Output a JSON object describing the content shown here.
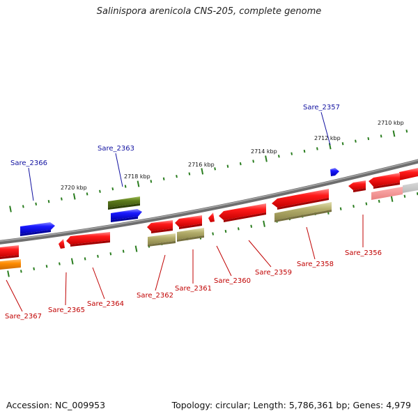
{
  "title": "Salinispora arenicola CNS-205, complete genome",
  "footer": {
    "accession_label": "Accession:",
    "accession": "NC_009953",
    "topology_label": "Topology:",
    "topology": "circular",
    "length_label": "Length:",
    "length": "5,786,361 bp",
    "genes_label": "Genes:",
    "genes": "4,979"
  },
  "colors": {
    "backbone": "#7a7a7a",
    "tick_mark": "#2a7d1f",
    "gene_red": "#ee1111",
    "gene_blue": "#1111ee",
    "gene_olive": "#5c7a1c",
    "gene_khaki": "#b3ad6b",
    "gene_orange": "#ff8c00",
    "label_red": "#c00000",
    "label_blue": "#1010a0"
  },
  "ruler_labels": [
    {
      "text": "2710 kbp"
    },
    {
      "text": "2712 kbp"
    },
    {
      "text": "2714 kbp"
    },
    {
      "text": "2716 kbp"
    },
    {
      "text": "2718 kbp"
    },
    {
      "text": "2720 kbp"
    }
  ],
  "gene_labels": [
    {
      "text": "Sare_2357",
      "strand": "forward"
    },
    {
      "text": "Sare_2363",
      "strand": "forward"
    },
    {
      "text": "Sare_2366",
      "strand": "forward"
    },
    {
      "text": "Sare_2356",
      "strand": "reverse"
    },
    {
      "text": "Sare_2358",
      "strand": "reverse"
    },
    {
      "text": "Sare_2359",
      "strand": "reverse"
    },
    {
      "text": "Sare_2360",
      "strand": "reverse"
    },
    {
      "text": "Sare_2361",
      "strand": "reverse"
    },
    {
      "text": "Sare_2362",
      "strand": "reverse"
    },
    {
      "text": "Sare_2364",
      "strand": "reverse"
    },
    {
      "text": "Sare_2365",
      "strand": "reverse"
    },
    {
      "text": "Sare_2367",
      "strand": "reverse"
    }
  ]
}
